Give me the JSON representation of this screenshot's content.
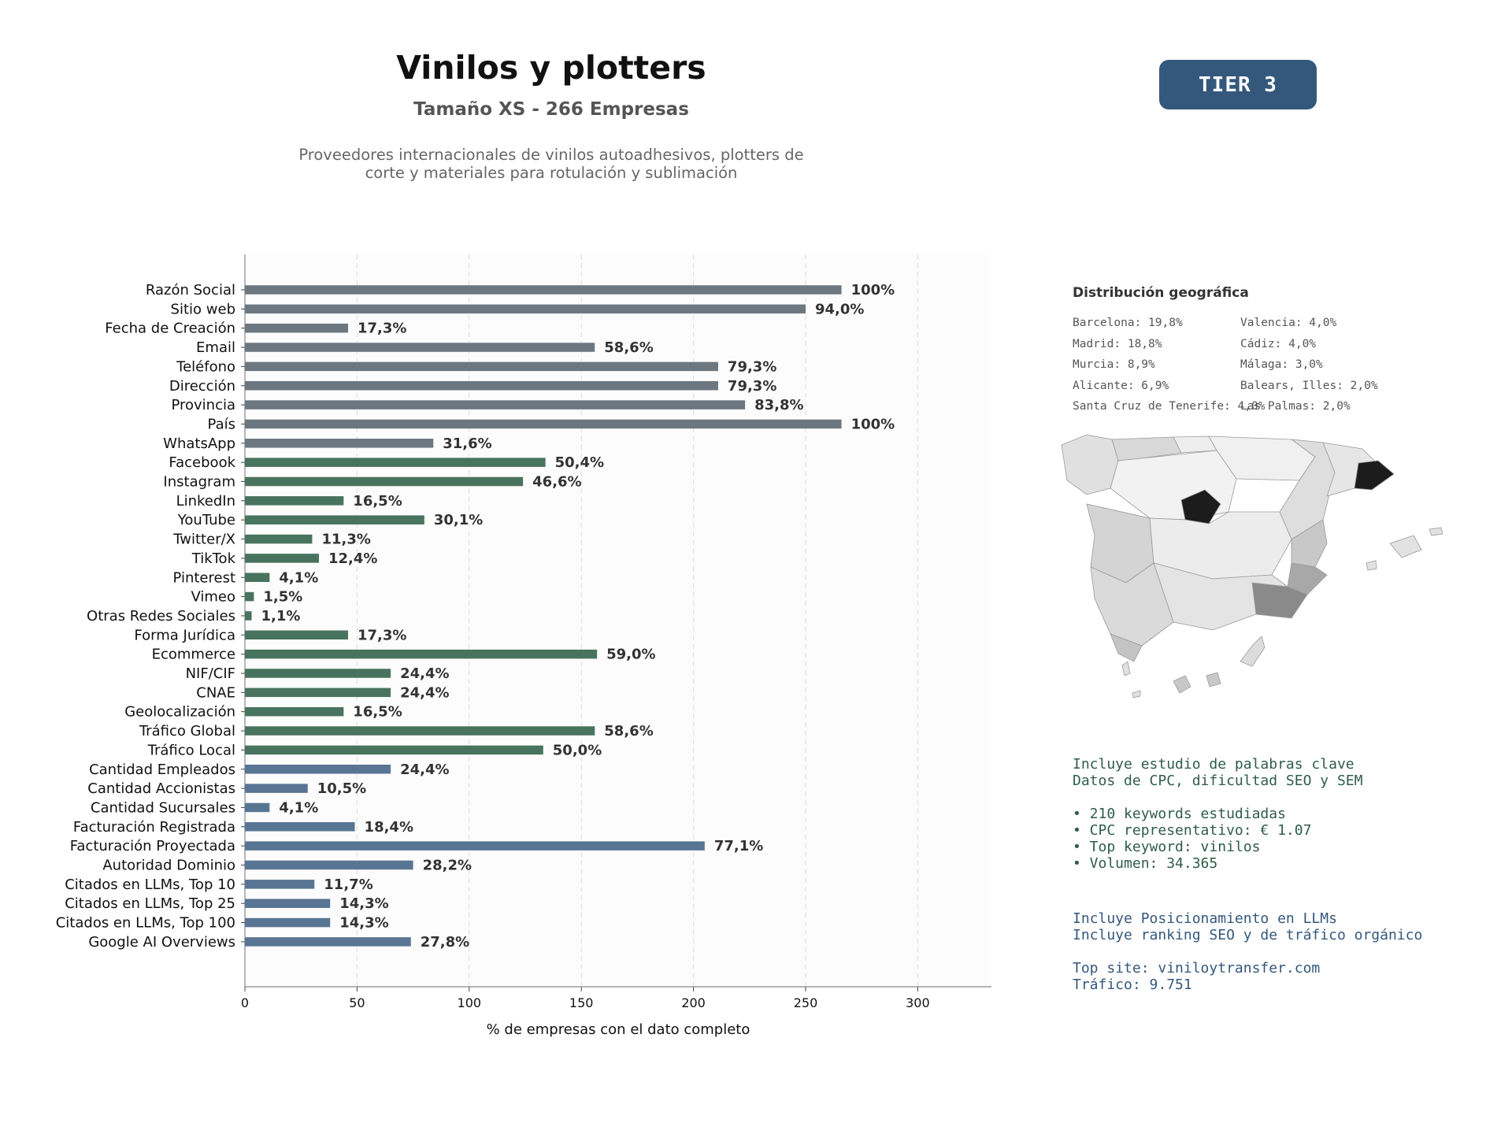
{
  "header": {
    "title": "Vinilos y plotters",
    "subtitle": "Tamaño XS - 266 Empresas",
    "description_line1": "Proveedores internacionales de vinilos autoadhesivos, plotters de",
    "description_line2": "corte y materiales para rotulación y sublimación",
    "tier_label": "TIER 3"
  },
  "colors": {
    "gray": "#6c7780",
    "green": "#48735f",
    "blue": "#587593"
  },
  "chart_data": {
    "type": "bar",
    "orientation": "horizontal",
    "title": "",
    "xlabel": "% de empresas con el dato completo",
    "ylabel": "",
    "xlim": [
      0,
      333
    ],
    "xticks": [
      0,
      50,
      100,
      150,
      200,
      250,
      300
    ],
    "grid": "vertical dashed",
    "categories": [
      "Razón Social",
      "Sitio web",
      "Fecha de Creación",
      "Email",
      "Teléfono",
      "Dirección",
      "Provincia",
      "País",
      "WhatsApp",
      "Facebook",
      "Instagram",
      "LinkedIn",
      "YouTube",
      "Twitter/X",
      "TikTok",
      "Pinterest",
      "Vimeo",
      "Otras Redes Sociales",
      "Forma Jurídica",
      "Ecommerce",
      "NIF/CIF",
      "CNAE",
      "Geolocalización",
      "Tráfico Global",
      "Tráfico Local",
      "Cantidad Empleados",
      "Cantidad Accionistas",
      "Cantidad Sucursales",
      "Facturación Registrada",
      "Facturación Proyectada",
      "Autoridad Dominio",
      "Citados en LLMs, Top 10",
      "Citados en LLMs, Top 25",
      "Citados en LLMs, Top 100",
      "Google AI Overviews"
    ],
    "values": [
      266,
      250,
      46,
      156,
      211,
      211,
      223,
      266,
      84,
      134,
      124,
      44,
      80,
      30,
      33,
      11,
      4,
      3,
      46,
      157,
      65,
      65,
      44,
      156,
      133,
      65,
      28,
      11,
      49,
      205,
      75,
      31,
      38,
      38,
      74
    ],
    "labels": [
      "100%",
      "94,0%",
      "17,3%",
      "58,6%",
      "79,3%",
      "79,3%",
      "83,8%",
      "100%",
      "31,6%",
      "50,4%",
      "46,6%",
      "16,5%",
      "30,1%",
      "11,3%",
      "12,4%",
      "4,1%",
      "1,5%",
      "1,1%",
      "17,3%",
      "59,0%",
      "24,4%",
      "24,4%",
      "16,5%",
      "58,6%",
      "50,0%",
      "24,4%",
      "10,5%",
      "4,1%",
      "18,4%",
      "77,1%",
      "28,2%",
      "11,7%",
      "14,3%",
      "14,3%",
      "27,8%"
    ],
    "groups": [
      "gray",
      "gray",
      "gray",
      "gray",
      "gray",
      "gray",
      "gray",
      "gray",
      "gray",
      "green",
      "green",
      "green",
      "green",
      "green",
      "green",
      "green",
      "green",
      "green",
      "green",
      "green",
      "green",
      "green",
      "green",
      "green",
      "green",
      "blue",
      "blue",
      "blue",
      "blue",
      "blue",
      "blue",
      "blue",
      "blue",
      "blue",
      "blue"
    ]
  },
  "geo": {
    "title": "Distribución geográfica",
    "items": [
      "Barcelona: 19,8%",
      "Valencia: 4,0%",
      "Madrid: 18,8%",
      "Cádiz: 4,0%",
      "Murcia: 8,9%",
      "Málaga: 3,0%",
      "Alicante: 6,9%",
      "Balears, Illes: 2,0%",
      "Santa Cruz de Tenerife: 4,0%",
      "Las Palmas: 2,0%"
    ],
    "map_shades": {
      "barcelona": "#1c1c1c",
      "madrid": "#1c1c1c",
      "murcia": "#8a8a8a",
      "alicante": "#a8a8a8",
      "mid": "#d0d0d0",
      "light": "#f0f0f0"
    }
  },
  "seo": {
    "line1": "Incluye estudio de palabras clave",
    "line2": "Datos de CPC, dificultad SEO y SEM",
    "bullet1": "• 210 keywords estudiadas",
    "bullet2": "• CPC representativo: € 1.07",
    "bullet3": "• Top keyword: vinilos",
    "bullet4": "• Volumen: 34.365"
  },
  "llm": {
    "line1": "Incluye Posicionamiento en LLMs",
    "line2": "Incluye ranking SEO y de tráfico orgánico",
    "line3": "Top site: viniloytransfer.com",
    "line4": "Tráfico: 9.751"
  }
}
